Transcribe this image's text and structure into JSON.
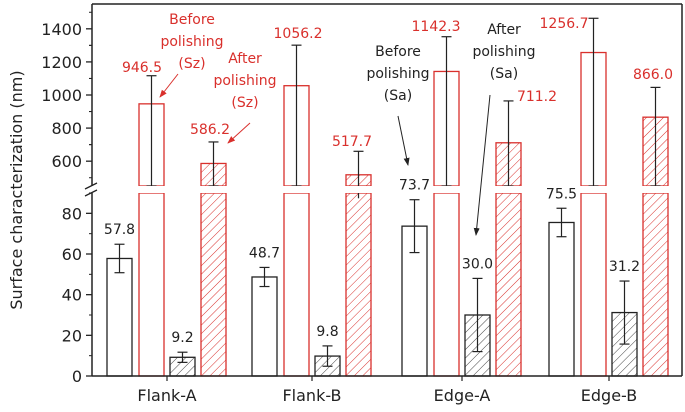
{
  "chart_data": {
    "type": "bar",
    "ylabel": "Surface characterization (nm)",
    "xlabel": "",
    "axis_break": true,
    "ylim_lower": [
      0,
      90
    ],
    "ylim_upper": [
      450,
      1550
    ],
    "yticks_lower": [
      0,
      20,
      40,
      60,
      80
    ],
    "yticks_upper": [
      600,
      800,
      1000,
      1200,
      1400
    ],
    "grid": false,
    "categories": [
      "Flank-A",
      "Flank-B",
      "Edge-A",
      "Edge-B"
    ],
    "series": [
      {
        "key": "sa_before",
        "color": "#222222",
        "hatched": false,
        "values": [
          57.8,
          48.7,
          73.7,
          75.5
        ],
        "errors": [
          7,
          4.7,
          13,
          7
        ],
        "labels": [
          "57.8",
          "48.7",
          "73.7",
          "75.5"
        ]
      },
      {
        "key": "sz_before",
        "color": "#d9302c",
        "hatched": false,
        "values": [
          946.5,
          1056.2,
          1142.3,
          1256.7
        ],
        "errors": [
          170,
          245,
          210,
          207
        ],
        "labels": [
          "946.5",
          "1056.2",
          "1142.3",
          "1256.7"
        ]
      },
      {
        "key": "sa_after",
        "color": "#222222",
        "hatched": true,
        "values": [
          9.2,
          9.8,
          30.0,
          31.2
        ],
        "errors": [
          2.5,
          5,
          18,
          15.5
        ],
        "labels": [
          "9.2",
          "9.8",
          "30.0",
          "31.2"
        ]
      },
      {
        "key": "sz_after",
        "color": "#d9302c",
        "hatched": true,
        "values": [
          586.2,
          517.7,
          711.2,
          866.0
        ],
        "errors": [
          130,
          142,
          253,
          180
        ],
        "labels": [
          "586.2",
          "517.7",
          "711.2",
          "866.0"
        ]
      }
    ],
    "annotations": [
      {
        "key": "sz_before",
        "lines": [
          "Before",
          "polishing",
          "(Sz)"
        ],
        "color": "#d9302c"
      },
      {
        "key": "sz_after",
        "lines": [
          "After",
          "polishing",
          "(Sz)"
        ],
        "color": "#d9302c"
      },
      {
        "key": "sa_before",
        "lines": [
          "Before",
          "polishing",
          "(Sa)"
        ],
        "color": "#222222"
      },
      {
        "key": "sa_after",
        "lines": [
          "After",
          "polishing",
          "(Sa)"
        ],
        "color": "#222222"
      }
    ]
  }
}
